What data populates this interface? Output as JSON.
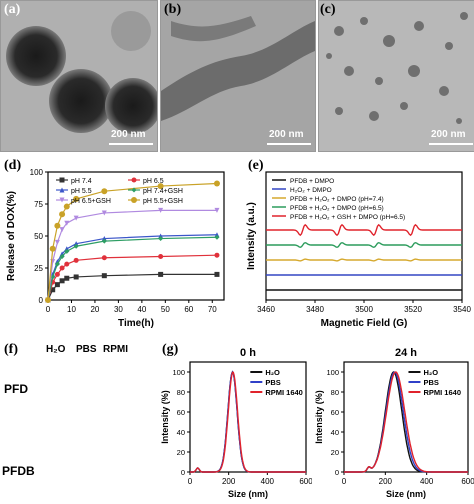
{
  "panel_labels": {
    "a": "(a)",
    "b": "(b)",
    "c": "(c)",
    "d": "(d)",
    "e": "(e)",
    "f": "(f)",
    "g": "(g)"
  },
  "tem": {
    "a": {
      "scale_text": "200 nm"
    },
    "b": {
      "scale_text": "200 nm"
    },
    "c": {
      "scale_text": "200 nm"
    }
  },
  "chart_data": [
    {
      "id": "d",
      "type": "line",
      "xlabel": "Time(h)",
      "ylabel": "Release of DOX(%)",
      "xlim": [
        0,
        75
      ],
      "ylim": [
        0,
        100
      ],
      "xticks": [
        0,
        10,
        20,
        30,
        40,
        50,
        60,
        70
      ],
      "yticks": [
        0,
        25,
        50,
        75,
        100
      ],
      "x": [
        0,
        2,
        4,
        6,
        8,
        12,
        24,
        48,
        72
      ],
      "series": [
        {
          "name": "pH 7.4",
          "color": "#333333",
          "marker": "square",
          "values": [
            0,
            8,
            12,
            15,
            17,
            18,
            19,
            20,
            20
          ]
        },
        {
          "name": "pH 6.5",
          "color": "#e0313b",
          "marker": "circle",
          "values": [
            0,
            14,
            20,
            25,
            28,
            31,
            33,
            34,
            35
          ]
        },
        {
          "name": "pH 5.5",
          "color": "#3b56c9",
          "marker": "triangle",
          "values": [
            0,
            20,
            30,
            36,
            40,
            44,
            48,
            50,
            51
          ]
        },
        {
          "name": "pH 7.4+GSH",
          "color": "#2e9e64",
          "marker": "diamond",
          "values": [
            0,
            18,
            28,
            34,
            38,
            42,
            46,
            48,
            49
          ]
        },
        {
          "name": "pH 6.5+GSH",
          "color": "#b08ae0",
          "marker": "triangle-down",
          "values": [
            0,
            30,
            45,
            55,
            60,
            64,
            68,
            70,
            70
          ]
        },
        {
          "name": "pH 5.5+GSH",
          "color": "#c9a227",
          "marker": "star",
          "values": [
            0,
            40,
            58,
            67,
            73,
            79,
            85,
            89,
            91
          ]
        }
      ]
    },
    {
      "id": "e",
      "type": "line",
      "xlabel": "Magnetic Field (G)",
      "ylabel": "Intensity (a.u.)",
      "xlim": [
        3460,
        3540
      ],
      "xticks": [
        3460,
        3480,
        3500,
        3520,
        3540
      ],
      "series": [
        {
          "name": "PFDB + DMPO",
          "color": "#111111",
          "baseline": 1
        },
        {
          "name": "H₂O₂ + DMPO",
          "color": "#3346c4",
          "baseline": 2
        },
        {
          "name": "PFDB + H₂O₂ + DMPO (pH=7.4)",
          "color": "#d6a92e",
          "baseline": 3
        },
        {
          "name": "PFDB + H₂O₂ + DMPO (pH=6.5)",
          "color": "#2c9c5c",
          "baseline": 4
        },
        {
          "name": "PFDB + H₂O₂ + GSH + DMPO (pH=6.5)",
          "color": "#e0232c",
          "baseline": 5
        }
      ],
      "peaks_G": [
        3475,
        3490,
        3505,
        3520
      ],
      "peak_amplitude": [
        0,
        0,
        0.15,
        0.4,
        0.9
      ]
    },
    {
      "id": "g0",
      "type": "line",
      "title": "0 h",
      "xlabel": "Size (nm)",
      "ylabel": "Intensity (%)",
      "xlim": [
        0,
        600
      ],
      "ylim": [
        0,
        110
      ],
      "xticks": [
        0,
        200,
        400,
        600
      ],
      "yticks": [
        0,
        20,
        40,
        60,
        80,
        100
      ],
      "series": [
        {
          "name": "H₂O",
          "color": "#111111",
          "peak": 220,
          "width": 60
        },
        {
          "name": "PBS",
          "color": "#3040c8",
          "peak": 220,
          "width": 60
        },
        {
          "name": "RPMI 1640",
          "color": "#e0232c",
          "peak": 222,
          "width": 60
        }
      ],
      "minor_peak": {
        "x": 40,
        "y": 4
      }
    },
    {
      "id": "g24",
      "type": "line",
      "title": "24 h",
      "xlabel": "Size (nm)",
      "ylabel": "Intensity (%)",
      "xlim": [
        0,
        600
      ],
      "ylim": [
        0,
        110
      ],
      "xticks": [
        0,
        200,
        400,
        600
      ],
      "yticks": [
        0,
        20,
        40,
        60,
        80,
        100
      ],
      "series": [
        {
          "name": "H₂O",
          "color": "#111111",
          "peak": 240,
          "width": 100
        },
        {
          "name": "PBS",
          "color": "#3040c8",
          "peak": 245,
          "width": 105
        },
        {
          "name": "RPMI 1640",
          "color": "#e0232c",
          "peak": 250,
          "width": 110
        }
      ],
      "minor_peak": {
        "x": 120,
        "y": 4
      }
    }
  ],
  "photo_f": {
    "tubes": [
      "H₂O",
      "PBS",
      "RPMI"
    ],
    "row_labels": [
      "PFD",
      "PFDB"
    ]
  }
}
